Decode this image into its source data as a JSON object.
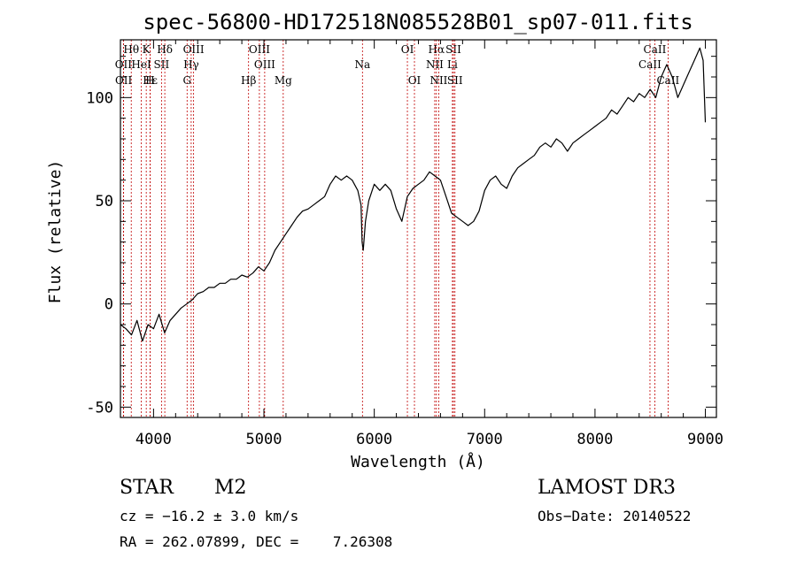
{
  "chart_data": {
    "type": "line",
    "title": "spec-56800-HD172518N085528B01_sp07-011.fits",
    "xlabel": "Wavelength (Å)",
    "ylabel": "Flux (relative)",
    "xlim": [
      3700,
      9100
    ],
    "ylim": [
      -55,
      128
    ],
    "xticks": [
      4000,
      5000,
      6000,
      7000,
      8000,
      9000
    ],
    "yticks": [
      -50,
      0,
      50,
      100
    ],
    "series": [
      {
        "name": "flux",
        "color": "#000000",
        "x": [
          3700,
          3750,
          3800,
          3850,
          3900,
          3950,
          4000,
          4050,
          4100,
          4150,
          4200,
          4250,
          4300,
          4350,
          4400,
          4450,
          4500,
          4550,
          4600,
          4650,
          4700,
          4750,
          4800,
          4850,
          4900,
          4950,
          5000,
          5050,
          5100,
          5150,
          5200,
          5250,
          5300,
          5350,
          5400,
          5450,
          5500,
          5550,
          5600,
          5650,
          5700,
          5750,
          5800,
          5850,
          5880,
          5890,
          5900,
          5920,
          5950,
          6000,
          6050,
          6100,
          6150,
          6200,
          6250,
          6300,
          6350,
          6400,
          6450,
          6500,
          6550,
          6600,
          6650,
          6700,
          6750,
          6800,
          6850,
          6900,
          6950,
          7000,
          7050,
          7100,
          7150,
          7200,
          7250,
          7300,
          7350,
          7400,
          7450,
          7500,
          7550,
          7600,
          7650,
          7700,
          7750,
          7800,
          7850,
          7900,
          7950,
          8000,
          8050,
          8100,
          8150,
          8200,
          8250,
          8300,
          8350,
          8400,
          8450,
          8500,
          8550,
          8600,
          8650,
          8700,
          8750,
          8800,
          8850,
          8900,
          8950,
          8980,
          9000
        ],
        "y": [
          -10,
          -12,
          -15,
          -8,
          -18,
          -10,
          -12,
          -5,
          -14,
          -8,
          -5,
          -2,
          0,
          2,
          5,
          6,
          8,
          8,
          10,
          10,
          12,
          12,
          14,
          13,
          15,
          18,
          16,
          20,
          26,
          30,
          34,
          38,
          42,
          45,
          46,
          48,
          50,
          52,
          58,
          62,
          60,
          62,
          60,
          55,
          48,
          30,
          26,
          40,
          50,
          58,
          55,
          58,
          55,
          46,
          40,
          52,
          56,
          58,
          60,
          64,
          62,
          60,
          52,
          44,
          42,
          40,
          38,
          40,
          45,
          55,
          60,
          62,
          58,
          56,
          62,
          66,
          68,
          70,
          72,
          76,
          78,
          76,
          80,
          78,
          74,
          78,
          80,
          82,
          84,
          86,
          88,
          90,
          94,
          92,
          96,
          100,
          98,
          102,
          100,
          104,
          100,
          110,
          116,
          110,
          100,
          106,
          112,
          118,
          124,
          118,
          88
        ]
      }
    ],
    "lines": [
      {
        "label": "Hθ",
        "wave": 3798,
        "row": 0
      },
      {
        "label": "OII",
        "wave": 3727,
        "row": 1
      },
      {
        "label": "OII",
        "wave": 3729,
        "row": 2
      },
      {
        "label": "K",
        "wave": 3934,
        "row": 0
      },
      {
        "label": "HeI",
        "wave": 3889,
        "row": 1
      },
      {
        "label": "Hε",
        "wave": 3970,
        "row": 2
      },
      {
        "label": "Hδ",
        "wave": 4102,
        "row": 0
      },
      {
        "label": "SII",
        "wave": 4072,
        "row": 1
      },
      {
        "label": "H",
        "wave": 3969,
        "row": 2
      },
      {
        "label": "OIII",
        "wave": 4363,
        "row": 0
      },
      {
        "label": "Hγ",
        "wave": 4341,
        "row": 1
      },
      {
        "label": "G",
        "wave": 4304,
        "row": 2
      },
      {
        "label": "Hβ",
        "wave": 4861,
        "row": 2
      },
      {
        "label": "OIII",
        "wave": 4959,
        "row": 0
      },
      {
        "label": "OIII",
        "wave": 5007,
        "row": 1
      },
      {
        "label": "Mg",
        "wave": 5175,
        "row": 2
      },
      {
        "label": "Na",
        "wave": 5893,
        "row": 1
      },
      {
        "label": "OI",
        "wave": 6300,
        "row": 0
      },
      {
        "label": "OI",
        "wave": 6364,
        "row": 2
      },
      {
        "label": "Hα",
        "wave": 6563,
        "row": 0
      },
      {
        "label": "NII",
        "wave": 6548,
        "row": 1
      },
      {
        "label": "NII",
        "wave": 6584,
        "row": 2
      },
      {
        "label": "SII",
        "wave": 6717,
        "row": 0
      },
      {
        "label": "Li",
        "wave": 6708,
        "row": 1
      },
      {
        "label": "SII",
        "wave": 6731,
        "row": 2
      },
      {
        "label": "CaII",
        "wave": 8542,
        "row": 0
      },
      {
        "label": "CaII",
        "wave": 8498,
        "row": 1
      },
      {
        "label": "CaII",
        "wave": 8662,
        "row": 2
      }
    ]
  },
  "info": {
    "object_class": "STAR",
    "subclass": "M2",
    "survey": "LAMOST DR3",
    "cz": "cz = −16.2 ± 3.0 km/s",
    "obs_date": "Obs−Date: 20140522",
    "coords": "RA = 262.07899, DEC =    7.26308"
  }
}
